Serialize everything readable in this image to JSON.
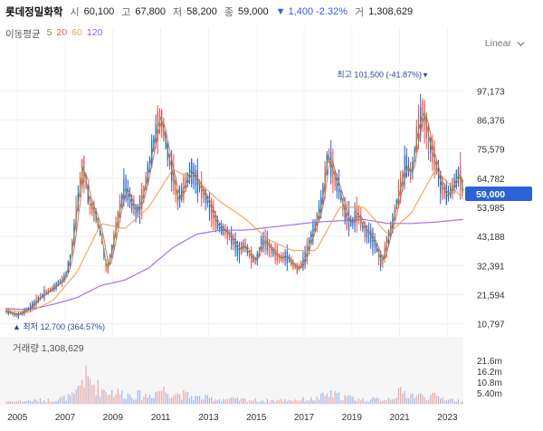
{
  "header": {
    "stock_name": "롯데정밀화학",
    "open_label": "시",
    "open": "60,100",
    "high_label": "고",
    "high": "67,800",
    "low_label": "저",
    "low": "58,200",
    "close_label": "종",
    "close": "59,000",
    "change": "▼ 1,400 -2.32%",
    "volume_label": "거",
    "volume": "1,308,629"
  },
  "ma_legend": {
    "title": "이동평균",
    "items": [
      {
        "label": "5",
        "color": "#3aa845"
      },
      {
        "label": "20",
        "color": "#e8524a"
      },
      {
        "label": "60",
        "color": "#f0a050"
      },
      {
        "label": "120",
        "color": "#9a62e8"
      }
    ]
  },
  "scale_selector": {
    "label": "Linear"
  },
  "colors": {
    "up": "#e8524a",
    "down": "#2b62d9",
    "grid": "#eeeeee",
    "axis_text": "#333333"
  },
  "chart_data": [
    {
      "type": "candlestick",
      "title": "",
      "x_ticks": [
        "2005",
        "2007",
        "2009",
        "2011",
        "2013",
        "2015",
        "2017",
        "2019",
        "2021",
        "2023"
      ],
      "xlim": [
        "2004-07",
        "2023-09"
      ],
      "ylim": [
        7300,
        106000
      ],
      "y_ticks": [
        10797,
        21594,
        32391,
        43188,
        53985,
        64782,
        75579,
        86376,
        97173
      ],
      "y_tick_labels": [
        "10,797",
        "21,594",
        "32,391",
        "43,188",
        "53,985",
        "64,782",
        "75,579",
        "86,376",
        "97,173"
      ],
      "last_price": 59000,
      "last_price_label": "59,000",
      "annotations": {
        "max": {
          "text": "최고 101,500 (-41.87%)",
          "value": 101500
        },
        "min": {
          "text": "최저 12,700 (364.57%)",
          "value": 12700
        }
      },
      "price_points": [
        [
          "2004-07",
          15500
        ],
        [
          "2005-01",
          14000
        ],
        [
          "2005-07",
          16500
        ],
        [
          "2006-01",
          21000
        ],
        [
          "2006-07",
          24000
        ],
        [
          "2007-01",
          28000
        ],
        [
          "2007-04",
          36000
        ],
        [
          "2007-07",
          54000
        ],
        [
          "2007-10",
          70000
        ],
        [
          "2008-01",
          56000
        ],
        [
          "2008-04",
          52000
        ],
        [
          "2008-07",
          44000
        ],
        [
          "2008-10",
          30000
        ],
        [
          "2009-01",
          40000
        ],
        [
          "2009-04",
          52000
        ],
        [
          "2009-07",
          62000
        ],
        [
          "2009-10",
          56000
        ],
        [
          "2010-01",
          52000
        ],
        [
          "2010-04",
          58000
        ],
        [
          "2010-07",
          68000
        ],
        [
          "2010-10",
          80000
        ],
        [
          "2011-01",
          88000
        ],
        [
          "2011-04",
          76000
        ],
        [
          "2011-07",
          66000
        ],
        [
          "2011-10",
          56000
        ],
        [
          "2012-01",
          62000
        ],
        [
          "2012-04",
          68000
        ],
        [
          "2012-07",
          64000
        ],
        [
          "2012-10",
          60000
        ],
        [
          "2013-01",
          56000
        ],
        [
          "2013-04",
          50000
        ],
        [
          "2013-07",
          46000
        ],
        [
          "2013-10",
          45000
        ],
        [
          "2014-01",
          42000
        ],
        [
          "2014-04",
          38000
        ],
        [
          "2014-07",
          40000
        ],
        [
          "2014-10",
          36000
        ],
        [
          "2015-01",
          34000
        ],
        [
          "2015-04",
          42000
        ],
        [
          "2015-07",
          40000
        ],
        [
          "2015-10",
          37000
        ],
        [
          "2016-01",
          35000
        ],
        [
          "2016-04",
          36000
        ],
        [
          "2016-07",
          33000
        ],
        [
          "2016-10",
          31000
        ],
        [
          "2017-01",
          34000
        ],
        [
          "2017-04",
          42000
        ],
        [
          "2017-07",
          48000
        ],
        [
          "2017-10",
          56000
        ],
        [
          "2018-01",
          74000
        ],
        [
          "2018-04",
          66000
        ],
        [
          "2018-07",
          60000
        ],
        [
          "2018-10",
          50000
        ],
        [
          "2019-01",
          48000
        ],
        [
          "2019-04",
          52000
        ],
        [
          "2019-07",
          46000
        ],
        [
          "2019-10",
          44000
        ],
        [
          "2020-01",
          40000
        ],
        [
          "2020-04",
          33000
        ],
        [
          "2020-07",
          42000
        ],
        [
          "2020-10",
          50000
        ],
        [
          "2021-01",
          60000
        ],
        [
          "2021-04",
          70000
        ],
        [
          "2021-07",
          66000
        ],
        [
          "2021-10",
          82000
        ],
        [
          "2022-01",
          90000
        ],
        [
          "2022-04",
          78000
        ],
        [
          "2022-07",
          70000
        ],
        [
          "2022-10",
          62000
        ],
        [
          "2023-01",
          58000
        ],
        [
          "2023-04",
          62000
        ],
        [
          "2023-07",
          67000
        ],
        [
          "2023-09",
          59000
        ]
      ],
      "ma60_points": [
        [
          "2004-07",
          16000
        ],
        [
          "2005-07",
          15000
        ],
        [
          "2006-07",
          19500
        ],
        [
          "2007-07",
          30000
        ],
        [
          "2008-07",
          48000
        ],
        [
          "2009-07",
          46000
        ],
        [
          "2010-07",
          54000
        ],
        [
          "2011-07",
          68000
        ],
        [
          "2012-07",
          64000
        ],
        [
          "2013-07",
          56000
        ],
        [
          "2014-07",
          50000
        ],
        [
          "2015-07",
          42000
        ],
        [
          "2016-07",
          38000
        ],
        [
          "2017-07",
          38000
        ],
        [
          "2018-07",
          54000
        ],
        [
          "2019-07",
          54000
        ],
        [
          "2020-07",
          44000
        ],
        [
          "2021-07",
          52000
        ],
        [
          "2022-07",
          68000
        ],
        [
          "2023-09",
          57000
        ]
      ],
      "ma120_points": [
        [
          "2004-07",
          16500
        ],
        [
          "2005-07",
          16000
        ],
        [
          "2006-07",
          18000
        ],
        [
          "2007-07",
          20500
        ],
        [
          "2008-07",
          25000
        ],
        [
          "2009-07",
          27000
        ],
        [
          "2010-07",
          31500
        ],
        [
          "2011-07",
          39000
        ],
        [
          "2012-07",
          44000
        ],
        [
          "2013-07",
          45500
        ],
        [
          "2014-07",
          45500
        ],
        [
          "2015-07",
          46500
        ],
        [
          "2016-07",
          47500
        ],
        [
          "2017-07",
          48500
        ],
        [
          "2018-07",
          49000
        ],
        [
          "2019-07",
          49500
        ],
        [
          "2020-07",
          48000
        ],
        [
          "2021-07",
          48000
        ],
        [
          "2022-07",
          48500
        ],
        [
          "2023-09",
          49500
        ]
      ]
    },
    {
      "type": "bar",
      "title": "거래량",
      "latest_value_label": "1,308,629",
      "ylim": [
        0,
        27000000
      ],
      "y_ticks": [
        5400000,
        10800000,
        16200000,
        21600000
      ],
      "y_tick_labels": [
        "5.40m",
        "10.8m",
        "16.2m",
        "21.6m"
      ],
      "volume_points": [
        [
          "2004-07",
          1500000
        ],
        [
          "2006-07",
          2500000
        ],
        [
          "2007-06",
          5000000
        ],
        [
          "2007-10",
          17000000
        ],
        [
          "2008-07",
          9000000
        ],
        [
          "2009-07",
          6000000
        ],
        [
          "2010-07",
          5000000
        ],
        [
          "2011-01",
          9000000
        ],
        [
          "2011-07",
          7000000
        ],
        [
          "2012-07",
          4000000
        ],
        [
          "2013-07",
          3000000
        ],
        [
          "2014-07",
          2500000
        ],
        [
          "2015-07",
          2000000
        ],
        [
          "2016-07",
          2500000
        ],
        [
          "2017-07",
          3000000
        ],
        [
          "2018-01",
          6000000
        ],
        [
          "2019-07",
          2500000
        ],
        [
          "2020-07",
          3000000
        ],
        [
          "2021-01",
          7000000
        ],
        [
          "2021-10",
          5000000
        ],
        [
          "2022-07",
          4500000
        ],
        [
          "2023-09",
          1300000
        ]
      ]
    }
  ]
}
